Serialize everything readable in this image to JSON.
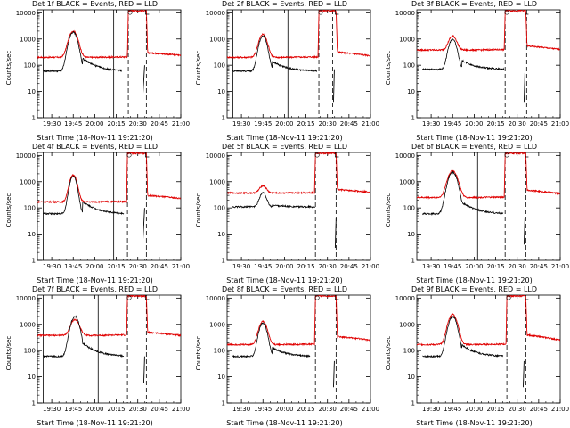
{
  "colors": {
    "events": "#000000",
    "lld": "#e00000",
    "axis": "#000000"
  },
  "chart_data": [
    {
      "id": "det1",
      "type": "line",
      "title": "Det 1f BLACK = Events, RED = LLD",
      "xlabel": "Start Time (18-Nov-11 19:21:20)",
      "ylabel": "Counts/sec",
      "yscale": "log",
      "ylim": [
        1,
        13000
      ],
      "xlim": [
        19.3333,
        21.0
      ],
      "xticks": [
        "19:30",
        "19:45",
        "20:00",
        "20:15",
        "20:30",
        "20:45",
        "21:00"
      ],
      "yticks": [
        "1",
        "10",
        "100",
        "1000",
        "10000"
      ],
      "red": {
        "pre": 200,
        "peak": 2000,
        "peakT": 19.75,
        "width": 0.06,
        "post": 300,
        "tail": 240,
        "gapStart": 20.39,
        "gapEnd": 20.6
      },
      "black": {
        "base": 60,
        "peak": 1800,
        "bump": 120,
        "end": 20.32,
        "frag": [
          [
            20.58,
            100
          ],
          [
            20.56,
            8
          ]
        ]
      },
      "solid": [
        19.4,
        20.22
      ],
      "dashed": [
        20.39,
        20.6
      ]
    },
    {
      "id": "det2",
      "type": "line",
      "title": "Det 2f BLACK = Events, RED = LLD",
      "xlabel": "Start Time (18-Nov-11 19:21:20)",
      "ylabel": "Counts/sec",
      "yscale": "log",
      "ylim": [
        1,
        13000
      ],
      "xlim": [
        19.3333,
        21.0
      ],
      "xticks": [
        "19:30",
        "19:45",
        "20:00",
        "20:15",
        "20:30",
        "20:45",
        "21:00"
      ],
      "yticks": [
        "1",
        "10",
        "100",
        "1000",
        "10000"
      ],
      "red": {
        "pre": 200,
        "peak": 1500,
        "peakT": 19.75,
        "width": 0.055,
        "post": 320,
        "tail": 230,
        "gapStart": 20.4,
        "gapEnd": 20.6
      },
      "black": {
        "base": 60,
        "peak": 1300,
        "bump": 80,
        "end": 20.38,
        "frag": [
          [
            20.58,
            70
          ],
          [
            20.57,
            4
          ]
        ]
      },
      "solid": [
        19.4,
        20.04
      ],
      "dashed": [
        20.4,
        20.56
      ]
    },
    {
      "id": "det3",
      "type": "line",
      "title": "Det 3f BLACK = Events, RED = LLD",
      "xlabel": "Start Time (18-Nov-11 19:21:20)",
      "ylabel": "Counts/sec",
      "yscale": "log",
      "ylim": [
        1,
        13000
      ],
      "xlim": [
        19.3333,
        21.0
      ],
      "xticks": [
        "19:30",
        "19:45",
        "20:00",
        "20:15",
        "20:30",
        "20:45",
        "21:00"
      ],
      "yticks": [
        "1",
        "10",
        "100",
        "1000",
        "10000"
      ],
      "red": {
        "pre": 380,
        "peak": 1300,
        "peakT": 19.75,
        "width": 0.055,
        "post": 550,
        "tail": 400,
        "gapStart": 20.36,
        "gapEnd": 20.6
      },
      "black": {
        "base": 70,
        "peak": 1000,
        "bump": 80,
        "end": 20.35,
        "frag": [
          [
            20.59,
            50
          ],
          [
            20.58,
            4
          ]
        ]
      },
      "solid": [],
      "dashed": [
        20.36,
        20.61
      ]
    },
    {
      "id": "det4",
      "type": "line",
      "title": "Det 4f BLACK = Events, RED = LLD",
      "xlabel": "Start Time (18-Nov-11 19:21:20)",
      "ylabel": "Counts/sec",
      "yscale": "log",
      "ylim": [
        1,
        13000
      ],
      "xlim": [
        19.3333,
        21.0
      ],
      "xticks": [
        "19:30",
        "19:45",
        "20:00",
        "20:15",
        "20:30",
        "20:45",
        "21:00"
      ],
      "yticks": [
        "1",
        "10",
        "100",
        "1000",
        "10000"
      ],
      "red": {
        "pre": 170,
        "peak": 1800,
        "peakT": 19.75,
        "width": 0.05,
        "post": 300,
        "tail": 230,
        "gapStart": 20.38,
        "gapEnd": 20.6
      },
      "black": {
        "base": 60,
        "peak": 1600,
        "bump": 110,
        "end": 20.34,
        "frag": [
          [
            20.58,
            100
          ],
          [
            20.56,
            6
          ]
        ]
      },
      "solid": [
        19.4,
        20.22
      ],
      "dashed": [
        20.38,
        20.6
      ]
    },
    {
      "id": "det5",
      "type": "line",
      "title": "Det 5f BLACK = Events, RED = LLD",
      "xlabel": "Start Time (18-Nov-11 19:21:20)",
      "ylabel": "Counts/sec",
      "yscale": "log",
      "ylim": [
        1,
        13000
      ],
      "xlim": [
        19.3333,
        21.0
      ],
      "xticks": [
        "19:30",
        "19:45",
        "20:00",
        "20:15",
        "20:30",
        "20:45",
        "21:00"
      ],
      "yticks": [
        "1",
        "10",
        "100",
        "1000",
        "10000"
      ],
      "red": {
        "pre": 370,
        "peak": 700,
        "peakT": 19.75,
        "width": 0.05,
        "post": 500,
        "tail": 400,
        "gapStart": 20.36,
        "gapEnd": 20.6
      },
      "black": {
        "base": 110,
        "peak": 380,
        "bump": 20,
        "end": 20.36,
        "frag": [
          [
            20.6,
            40
          ],
          [
            20.59,
            3
          ]
        ]
      },
      "solid": [],
      "dashed": [
        20.36,
        20.6
      ]
    },
    {
      "id": "det6",
      "type": "line",
      "title": "Det 6f BLACK = Events, RED = LLD",
      "xlabel": "Start Time (18-Nov-11 19:21:20)",
      "ylabel": "Counts/sec",
      "yscale": "log",
      "ylim": [
        1,
        13000
      ],
      "xlim": [
        19.3333,
        21.0
      ],
      "xticks": [
        "19:30",
        "19:45",
        "20:00",
        "20:15",
        "20:30",
        "20:45",
        "21:00"
      ],
      "yticks": [
        "1",
        "10",
        "100",
        "1000",
        "10000"
      ],
      "red": {
        "pre": 250,
        "peak": 2600,
        "peakT": 19.75,
        "width": 0.065,
        "post": 480,
        "tail": 350,
        "gapStart": 20.36,
        "gapEnd": 20.6
      },
      "black": {
        "base": 60,
        "peak": 2300,
        "bump": 100,
        "end": 20.34,
        "frag": [
          [
            20.59,
            40
          ],
          [
            20.58,
            4
          ]
        ]
      },
      "solid": [
        20.04
      ],
      "dashed": [
        20.36,
        20.6
      ]
    },
    {
      "id": "det7",
      "type": "line",
      "title": "Det 7f BLACK = Events, RED = LLD",
      "xlabel": "Start Time (18-Nov-11 19:21:20)",
      "ylabel": "Counts/sec",
      "yscale": "log",
      "ylim": [
        1,
        13000
      ],
      "xlim": [
        19.3333,
        21.0
      ],
      "xticks": [
        "19:30",
        "19:45",
        "20:00",
        "20:15",
        "20:30",
        "20:45",
        "21:00"
      ],
      "yticks": [
        "1",
        "10",
        "100",
        "1000",
        "10000"
      ],
      "red": {
        "pre": 380,
        "peak": 1500,
        "peakT": 19.77,
        "width": 0.06,
        "post": 500,
        "tail": 380,
        "gapStart": 20.38,
        "gapEnd": 20.6
      },
      "black": {
        "base": 60,
        "peak": 2000,
        "bump": 130,
        "end": 20.34,
        "frag": [
          [
            20.58,
            60
          ],
          [
            20.57,
            6
          ]
        ]
      },
      "solid": [
        19.4,
        20.04
      ],
      "dashed": [
        20.38,
        20.6
      ]
    },
    {
      "id": "det8",
      "type": "line",
      "title": "Det 8f BLACK = Events, RED = LLD",
      "xlabel": "Start Time (18-Nov-11 19:21:20)",
      "ylabel": "Counts/sec",
      "yscale": "log",
      "ylim": [
        1,
        13000
      ],
      "xlim": [
        19.3333,
        21.0
      ],
      "xticks": [
        "19:30",
        "19:45",
        "20:00",
        "20:15",
        "20:30",
        "20:45",
        "21:00"
      ],
      "yticks": [
        "1",
        "10",
        "100",
        "1000",
        "10000"
      ],
      "red": {
        "pre": 170,
        "peak": 1300,
        "peakT": 19.75,
        "width": 0.055,
        "post": 350,
        "tail": 250,
        "gapStart": 20.36,
        "gapEnd": 20.6
      },
      "black": {
        "base": 60,
        "peak": 1100,
        "bump": 70,
        "end": 20.3,
        "frag": [
          [
            20.58,
            40
          ],
          [
            20.57,
            4
          ]
        ]
      },
      "solid": [],
      "dashed": [
        20.36,
        20.6
      ]
    },
    {
      "id": "det9",
      "type": "line",
      "title": "Det 9f BLACK = Events, RED = LLD",
      "xlabel": "Start Time (18-Nov-11 19:21:20)",
      "ylabel": "Counts/sec",
      "yscale": "log",
      "ylim": [
        1,
        13000
      ],
      "xlim": [
        19.3333,
        21.0
      ],
      "xticks": [
        "19:30",
        "19:45",
        "20:00",
        "20:15",
        "20:30",
        "20:45",
        "21:00"
      ],
      "yticks": [
        "1",
        "10",
        "100",
        "1000",
        "10000"
      ],
      "red": {
        "pre": 170,
        "peak": 2400,
        "peakT": 19.75,
        "width": 0.06,
        "post": 400,
        "tail": 250,
        "gapStart": 20.38,
        "gapEnd": 20.6
      },
      "black": {
        "base": 60,
        "peak": 2000,
        "bump": 100,
        "end": 20.34,
        "frag": [
          [
            20.58,
            40
          ],
          [
            20.57,
            4
          ]
        ]
      },
      "solid": [],
      "dashed": [
        20.38,
        20.6
      ]
    }
  ]
}
